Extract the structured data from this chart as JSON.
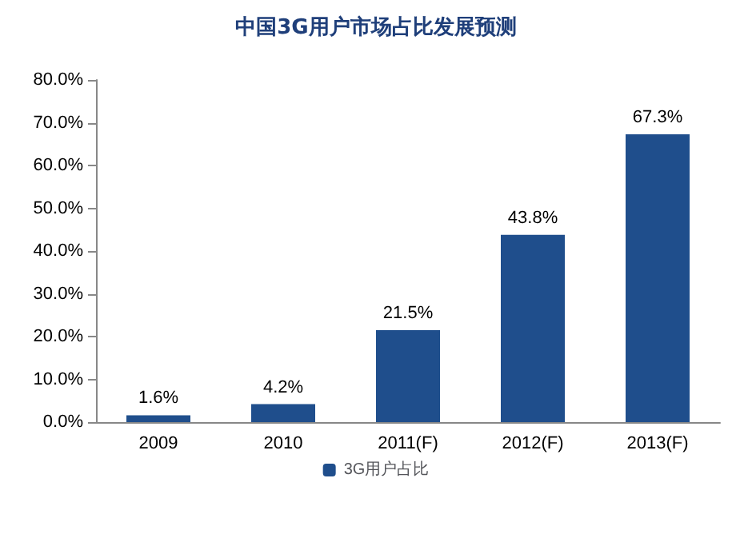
{
  "chart_data": {
    "type": "bar",
    "title": "中国3G用户市场占比发展预测",
    "categories": [
      "2009",
      "2010",
      "2011(F)",
      "2012(F)",
      "2013(F)"
    ],
    "series": [
      {
        "name": "3G用户占比",
        "color": "#1f4e8c",
        "values": [
          1.6,
          4.2,
          21.5,
          43.8,
          67.3
        ],
        "value_labels": [
          "1.6%",
          "4.2%",
          "21.5%",
          "43.8%",
          "67.3%"
        ]
      }
    ],
    "ylim": [
      0,
      80
    ],
    "yticks": [
      {
        "value": 0,
        "label": "0.0%"
      },
      {
        "value": 10,
        "label": "10.0%"
      },
      {
        "value": 20,
        "label": "20.0%"
      },
      {
        "value": 30,
        "label": "30.0%"
      },
      {
        "value": 40,
        "label": "40.0%"
      },
      {
        "value": 50,
        "label": "50.0%"
      },
      {
        "value": 60,
        "label": "60.0%"
      },
      {
        "value": 70,
        "label": "70.0%"
      },
      {
        "value": 80,
        "label": "80.0%"
      }
    ],
    "grid": false,
    "legend": "bottom"
  }
}
